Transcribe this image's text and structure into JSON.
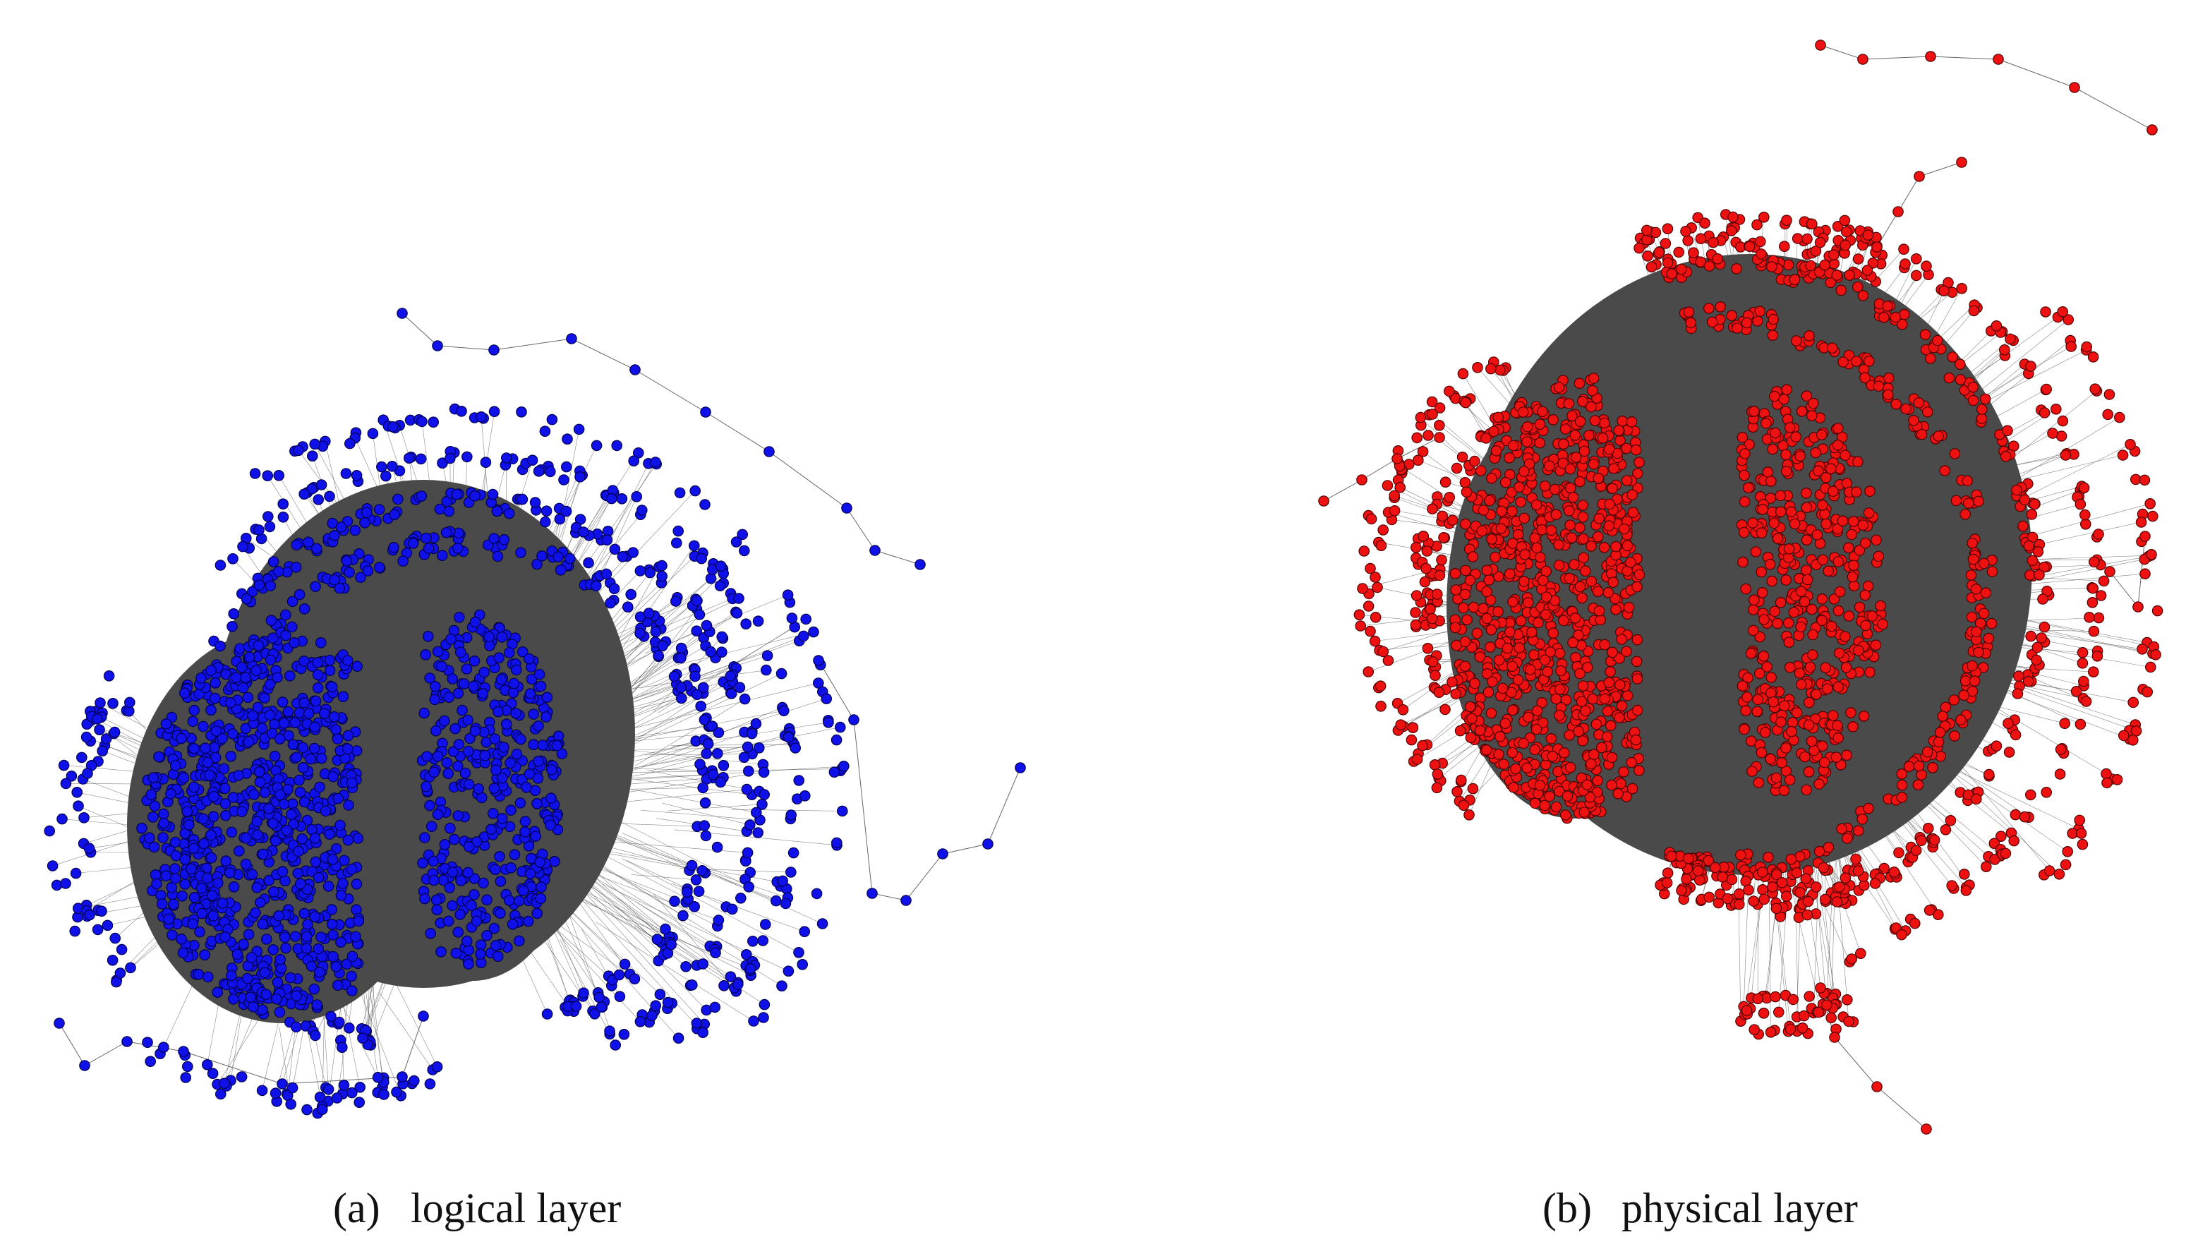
{
  "figures": [
    {
      "label": "(a)",
      "caption": "logical layer"
    },
    {
      "label": "(b)",
      "caption": "physical layer"
    }
  ]
}
